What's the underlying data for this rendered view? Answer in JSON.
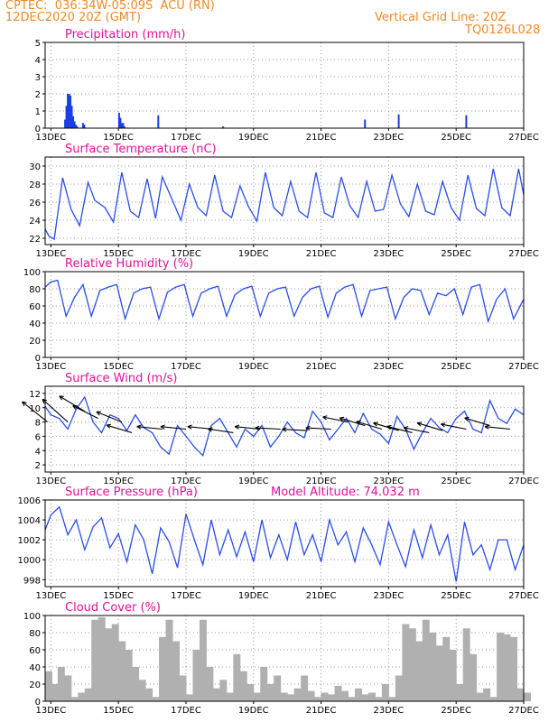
{
  "header": {
    "line1_left": "CPTEC:  036:34W-05:09S  ACU (RN)",
    "line2_left": "12DEC2020 20Z (GMT)",
    "line1_right": "Vertical Grid Line: 20Z",
    "line2_right": "TQ0126L028"
  },
  "chart_data": [
    {
      "type": "bar",
      "title": "Precipitation (mm/h)",
      "ylim": [
        0,
        5
      ],
      "yticks": [
        0,
        1,
        2,
        3,
        4,
        5
      ],
      "xticks": [
        "13DEC",
        "15DEC",
        "17DEC",
        "19DEC",
        "21DEC",
        "23DEC",
        "25DEC",
        "27DEC"
      ],
      "x_unit": "days since 12DEC2020 00Z",
      "series": [
        {
          "x": [
            1.42,
            1.46,
            1.5,
            1.54,
            1.58,
            1.62,
            1.66,
            1.7,
            1.74,
            1.78,
            1.95,
            1.99,
            3.02,
            3.06,
            3.1,
            3.14,
            3.18,
            4.18,
            6.1,
            10.3,
            11.3,
            13.3
          ],
          "values": [
            0.5,
            1.3,
            2.0,
            2.0,
            1.9,
            1.3,
            0.7,
            0.4,
            0.2,
            0.1,
            0.3,
            0.2,
            0.9,
            0.6,
            0.3,
            0.3,
            0.1,
            0.75,
            0.1,
            0.5,
            0.8,
            0.75
          ]
        }
      ]
    },
    {
      "type": "line",
      "title": "Surface Temperature (nC)",
      "ylim": [
        21.3,
        31
      ],
      "yticks": [
        22,
        24,
        26,
        28,
        30
      ],
      "xticks": [
        "13DEC",
        "15DEC",
        "17DEC",
        "19DEC",
        "21DEC",
        "23DEC",
        "25DEC",
        "27DEC"
      ],
      "series": [
        {
          "x": [
            0.83,
            0.95,
            1.1,
            1.35,
            1.6,
            1.85,
            2.1,
            2.3,
            2.6,
            2.85,
            3.1,
            3.35,
            3.6,
            3.85,
            4.1,
            4.3,
            4.6,
            4.85,
            5.1,
            5.35,
            5.6,
            5.85,
            6.1,
            6.35,
            6.6,
            6.85,
            7.1,
            7.35,
            7.6,
            7.85,
            8.1,
            8.35,
            8.6,
            8.85,
            9.1,
            9.35,
            9.6,
            9.85,
            10.1,
            10.35,
            10.6,
            10.85,
            11.1,
            11.35,
            11.6,
            11.85,
            12.1,
            12.35,
            12.6,
            12.85,
            13.1,
            13.35,
            13.6,
            13.85,
            14.1,
            14.35,
            14.6,
            14.85,
            15.0
          ],
          "values": [
            23.0,
            22.2,
            21.9,
            28.7,
            25.2,
            23.4,
            28.2,
            26.2,
            25.4,
            23.8,
            29.3,
            25.0,
            24.3,
            28.6,
            24.2,
            28.8,
            26.2,
            24.0,
            28.0,
            25.4,
            24.5,
            29.0,
            25.0,
            24.3,
            27.8,
            25.5,
            23.9,
            29.3,
            25.4,
            24.5,
            28.3,
            25.0,
            24.3,
            29.3,
            24.8,
            24.3,
            28.8,
            25.6,
            24.3,
            28.3,
            25.0,
            25.2,
            29.0,
            25.8,
            24.4,
            28.0,
            25.0,
            24.6,
            28.3,
            25.4,
            24.0,
            29.0,
            25.3,
            24.5,
            29.7,
            25.4,
            24.5,
            29.7,
            26.8
          ]
        }
      ]
    },
    {
      "type": "line",
      "title": "Relative Humidity (%)",
      "ylim": [
        0,
        100
      ],
      "yticks": [
        0,
        20,
        40,
        60,
        80,
        100
      ],
      "xticks": [
        "13DEC",
        "15DEC",
        "17DEC",
        "19DEC",
        "21DEC",
        "23DEC",
        "25DEC",
        "27DEC"
      ],
      "series": [
        {
          "x": [
            0.83,
            1.0,
            1.2,
            1.45,
            1.7,
            1.95,
            2.2,
            2.45,
            2.7,
            2.95,
            3.2,
            3.45,
            3.7,
            3.95,
            4.2,
            4.45,
            4.7,
            4.95,
            5.2,
            5.45,
            5.7,
            5.95,
            6.2,
            6.45,
            6.7,
            6.95,
            7.2,
            7.45,
            7.7,
            7.95,
            8.2,
            8.45,
            8.7,
            8.95,
            9.2,
            9.45,
            9.7,
            9.95,
            10.2,
            10.45,
            10.7,
            10.95,
            11.2,
            11.45,
            11.7,
            11.95,
            12.2,
            12.45,
            12.7,
            12.95,
            13.2,
            13.45,
            13.7,
            13.95,
            14.2,
            14.45,
            14.7,
            15.0
          ],
          "values": [
            82,
            88,
            90,
            48,
            70,
            85,
            48,
            78,
            82,
            85,
            45,
            75,
            80,
            82,
            45,
            76,
            82,
            85,
            48,
            75,
            80,
            83,
            48,
            73,
            80,
            83,
            48,
            75,
            80,
            82,
            48,
            70,
            80,
            83,
            47,
            75,
            82,
            85,
            48,
            78,
            80,
            82,
            45,
            70,
            80,
            78,
            50,
            75,
            72,
            80,
            50,
            82,
            85,
            42,
            68,
            80,
            45,
            68
          ]
        }
      ]
    },
    {
      "type": "line",
      "title": "Surface Wind (m/s)",
      "ylim": [
        1,
        13
      ],
      "yticks": [
        2,
        4,
        6,
        8,
        10,
        12
      ],
      "xticks": [
        "13DEC",
        "15DEC",
        "17DEC",
        "19DEC",
        "21DEC",
        "23DEC",
        "25DEC",
        "27DEC"
      ],
      "series": [
        {
          "x": [
            0.83,
            1.0,
            1.25,
            1.5,
            1.75,
            2.0,
            2.25,
            2.5,
            2.75,
            3.0,
            3.25,
            3.5,
            3.75,
            4.0,
            4.25,
            4.5,
            4.75,
            5.0,
            5.25,
            5.5,
            5.75,
            6.0,
            6.25,
            6.5,
            6.75,
            7.0,
            7.25,
            7.5,
            7.75,
            8.0,
            8.25,
            8.5,
            8.75,
            9.0,
            9.25,
            9.5,
            9.75,
            10.0,
            10.25,
            10.5,
            10.75,
            11.0,
            11.25,
            11.5,
            11.75,
            12.0,
            12.25,
            12.5,
            12.75,
            13.0,
            13.25,
            13.5,
            13.75,
            14.0,
            14.25,
            14.5,
            14.75,
            15.0
          ],
          "values": [
            10.2,
            9.0,
            8.5,
            7.0,
            9.8,
            11.5,
            8.0,
            6.5,
            9.0,
            8.5,
            6.8,
            9.0,
            7.2,
            6.5,
            4.5,
            3.5,
            7.5,
            6.0,
            4.5,
            3.3,
            7.5,
            8.5,
            6.5,
            4.5,
            7.0,
            6.0,
            7.5,
            4.5,
            6.0,
            8.0,
            6.5,
            5.8,
            9.5,
            8.0,
            5.5,
            7.0,
            8.5,
            6.5,
            9.2,
            7.0,
            6.3,
            5.0,
            8.8,
            7.0,
            4.2,
            6.5,
            8.5,
            7.2,
            6.5,
            8.5,
            9.5,
            7.0,
            6.5,
            11.0,
            8.5,
            7.8,
            9.8,
            9.0
          ]
        }
      ],
      "arrows": {
        "x": [
          0.9,
          1.5,
          2.0,
          2.4,
          3.1,
          3.4,
          4.3,
          5.0,
          5.8,
          6.4,
          7.2,
          7.8,
          8.6,
          9.3,
          9.8,
          10.3,
          10.8,
          11.3,
          11.7,
          12.2,
          12.6,
          13.3,
          14.0,
          14.6
        ],
        "ys": [
          8.0,
          8.0,
          9.5,
          8.5,
          8.0,
          6.5,
          7.0,
          7.0,
          7.0,
          6.5,
          7.0,
          7.0,
          6.8,
          7.0,
          8.0,
          7.5,
          7.0,
          6.8,
          6.5,
          6.5,
          6.8,
          7.0,
          7.5,
          7.0
        ],
        "u": [
          -1.0,
          -1.0,
          -1.0,
          -1.0,
          -1.0,
          -1.0,
          -1.0,
          -1.0,
          -1.0,
          -1.0,
          -1.0,
          -1.0,
          -1.0,
          -1.0,
          -1.0,
          -1.0,
          -1.0,
          -1.0,
          -1.0,
          -1.0,
          -1.0,
          -1.0,
          -1.0,
          -1.0
        ],
        "v": [
          0.8,
          0.9,
          0.6,
          0.5,
          0.4,
          0.3,
          0.1,
          0.1,
          0.1,
          0.15,
          0.1,
          0.05,
          0.05,
          0.05,
          0.2,
          0.3,
          0.3,
          0.3,
          0.25,
          0.2,
          0.3,
          0.2,
          0.3,
          0.1
        ]
      }
    },
    {
      "type": "line",
      "title": "Surface Pressure (hPa)",
      "annotation": "Model Altitude: 74.032 m",
      "ylim": [
        997.3,
        1006
      ],
      "yticks": [
        998,
        1000,
        1002,
        1004,
        1006
      ],
      "xticks": [
        "13DEC",
        "15DEC",
        "17DEC",
        "19DEC",
        "21DEC",
        "23DEC",
        "25DEC",
        "27DEC"
      ],
      "series": [
        {
          "x": [
            0.83,
            1.0,
            1.25,
            1.5,
            1.75,
            2.0,
            2.25,
            2.5,
            2.75,
            3.0,
            3.25,
            3.5,
            3.75,
            4.0,
            4.25,
            4.5,
            4.75,
            5.0,
            5.25,
            5.5,
            5.75,
            6.0,
            6.25,
            6.5,
            6.75,
            7.0,
            7.25,
            7.5,
            7.75,
            8.0,
            8.25,
            8.5,
            8.75,
            9.0,
            9.25,
            9.5,
            9.75,
            10.0,
            10.25,
            10.5,
            10.75,
            11.0,
            11.25,
            11.5,
            11.75,
            12.0,
            12.25,
            12.5,
            12.75,
            13.0,
            13.25,
            13.5,
            13.75,
            14.0,
            14.25,
            14.5,
            14.75,
            15.0
          ],
          "values": [
            1003.0,
            1004.5,
            1005.3,
            1002.5,
            1004.0,
            1001.0,
            1003.3,
            1004.2,
            1001.2,
            1002.6,
            999.8,
            1003.5,
            1002.0,
            998.6,
            1003.2,
            1001.8,
            999.2,
            1004.6,
            1002.0,
            999.5,
            1004.0,
            1000.5,
            1003.0,
            1000.3,
            1002.8,
            999.8,
            1004.0,
            1000.2,
            1002.5,
            1000.0,
            1003.8,
            1000.5,
            1002.5,
            999.8,
            1004.0,
            1001.5,
            1002.8,
            999.8,
            1003.2,
            1001.5,
            999.5,
            1003.8,
            1001.5,
            999.3,
            1003.0,
            1000.2,
            1003.5,
            1000.5,
            1002.5,
            997.8,
            1003.8,
            1000.5,
            1001.5,
            999.0,
            1002.0,
            1002.0,
            999.0,
            1001.5
          ]
        }
      ]
    },
    {
      "type": "area",
      "title": "Cloud Cover (%)",
      "ylim": [
        0,
        100
      ],
      "yticks": [
        0,
        20,
        40,
        60,
        80,
        100
      ],
      "xticks": [
        "13DEC",
        "15DEC",
        "17DEC",
        "19DEC",
        "21DEC",
        "23DEC",
        "25DEC",
        "27DEC"
      ],
      "series": [
        {
          "x": [
            0.83,
            1.0,
            1.2,
            1.4,
            1.6,
            1.8,
            2.0,
            2.2,
            2.4,
            2.6,
            2.8,
            3.0,
            3.2,
            3.4,
            3.6,
            3.8,
            4.0,
            4.2,
            4.4,
            4.6,
            4.8,
            5.0,
            5.2,
            5.4,
            5.6,
            5.8,
            6.0,
            6.2,
            6.4,
            6.6,
            6.8,
            7.0,
            7.2,
            7.4,
            7.6,
            7.8,
            8.0,
            8.2,
            8.4,
            8.6,
            8.8,
            9.0,
            9.2,
            9.4,
            9.6,
            9.8,
            10.0,
            10.2,
            10.4,
            10.6,
            10.8,
            11.0,
            11.2,
            11.4,
            11.6,
            11.8,
            12.0,
            12.2,
            12.4,
            12.6,
            12.8,
            13.0,
            13.2,
            13.4,
            13.6,
            13.8,
            14.0,
            14.2,
            14.4,
            14.6,
            14.8,
            15.0
          ],
          "values": [
            35,
            20,
            40,
            30,
            5,
            10,
            15,
            95,
            98,
            85,
            90,
            70,
            60,
            40,
            25,
            15,
            5,
            75,
            95,
            70,
            30,
            8,
            60,
            95,
            40,
            15,
            25,
            10,
            55,
            35,
            20,
            10,
            40,
            20,
            30,
            10,
            8,
            15,
            30,
            12,
            5,
            10,
            8,
            18,
            12,
            5,
            15,
            8,
            10,
            5,
            20,
            5,
            30,
            90,
            85,
            70,
            95,
            80,
            65,
            75,
            60,
            20,
            85,
            55,
            10,
            15,
            5,
            80,
            78,
            75,
            15,
            10
          ]
        }
      ]
    }
  ]
}
